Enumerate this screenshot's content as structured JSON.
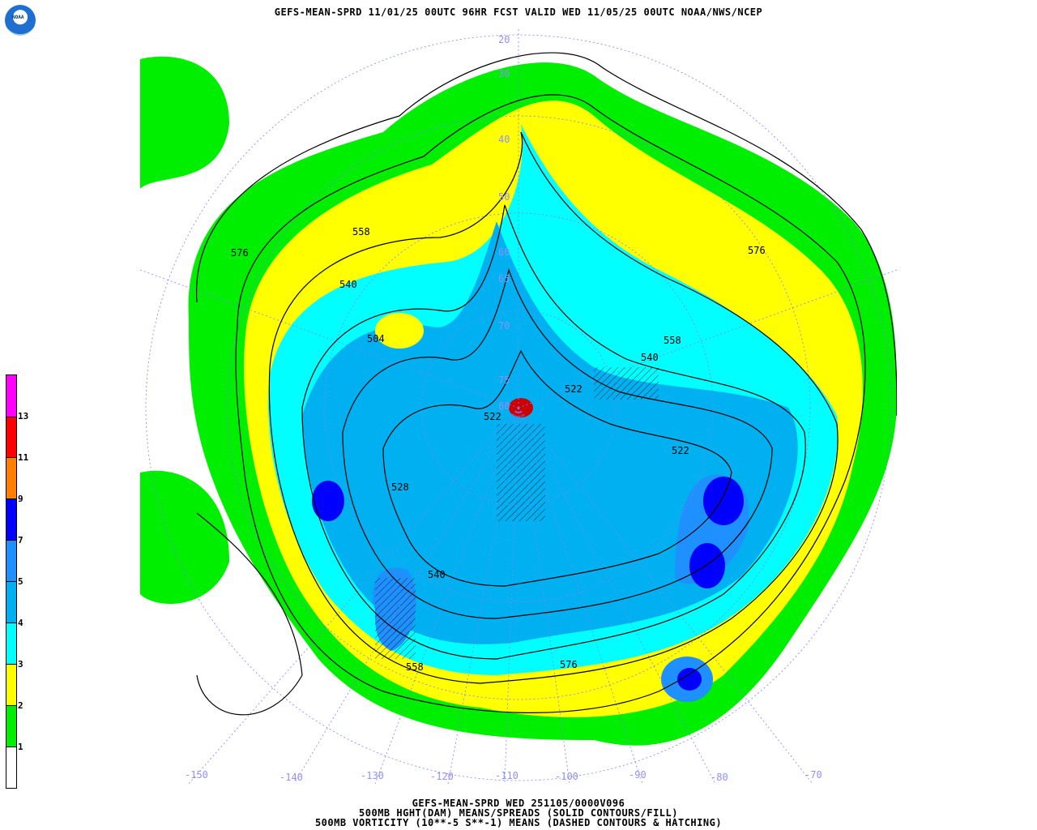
{
  "header": {
    "title": "GEFS-MEAN-SPRD 11/01/25 00UTC 96HR FCST VALID WED 11/05/25 00UTC NOAA/NWS/NCEP",
    "logo_text": "NOAA"
  },
  "footer": {
    "line1": "GEFS-MEAN-SPRD WED 251105/0000V096",
    "line2": "500MB HGHT(DAM) MEANS/SPREADS (SOLID CONTOURS/FILL)",
    "line3": "500MB VORTICITY (10**-5 S**-1) MEANS (DASHED CONTOURS & HATCHING)"
  },
  "colorbar": {
    "levels": [
      {
        "label": "1",
        "color": "#ffffff"
      },
      {
        "label": "2",
        "color": "#00ee00"
      },
      {
        "label": "3",
        "color": "#ffff00"
      },
      {
        "label": "4",
        "color": "#00ffff"
      },
      {
        "label": "5",
        "color": "#00b0f0"
      },
      {
        "label": "7",
        "color": "#1e90ff"
      },
      {
        "label": "9",
        "color": "#0000ff"
      },
      {
        "label": "11",
        "color": "#ff8000"
      },
      {
        "label": "13",
        "color": "#ff0000"
      },
      {
        "label": "",
        "color": "#ff00ff"
      }
    ]
  },
  "map": {
    "longitude_labels": [
      "-150",
      "-140",
      "-130",
      "-120",
      "-110",
      "-100",
      "-90",
      "-80",
      "-70"
    ],
    "latitude_labels": [
      "20",
      "30",
      "40",
      "50",
      "60",
      "65",
      "70",
      "75",
      "80"
    ],
    "contour_labels": [
      "576",
      "558",
      "540",
      "504",
      "522",
      "528",
      "522",
      "540",
      "558",
      "576",
      "522",
      "540",
      "558",
      "576"
    ]
  }
}
